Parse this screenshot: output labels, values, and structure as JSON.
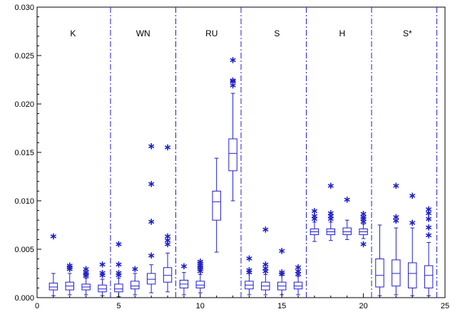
{
  "chart_data": {
    "type": "boxplot",
    "title": "",
    "xlabel": "",
    "ylabel": "",
    "xlim": [
      0,
      25
    ],
    "ylim": [
      0,
      0.03
    ],
    "grid": false,
    "x_ticks": [
      0,
      5,
      10,
      15,
      20,
      25
    ],
    "x_tick_labels": [
      "0",
      "5",
      "10",
      "15",
      "20",
      "25"
    ],
    "y_ticks": [
      0,
      0.005,
      0.01,
      0.015,
      0.02,
      0.025,
      0.03
    ],
    "y_tick_labels": [
      "0.000",
      "0.005",
      "0.010",
      "0.015",
      "0.020",
      "0.025",
      "0.030"
    ],
    "box_color": "#1f1fcc",
    "group_dividers": [
      4.5,
      8.5,
      12.5,
      16.5,
      20.5,
      24.5
    ],
    "group_labels": [
      {
        "text": "K",
        "x": 2.2
      },
      {
        "text": "WN",
        "x": 6.5
      },
      {
        "text": "RU",
        "x": 10.7
      },
      {
        "text": "S",
        "x": 14.7
      },
      {
        "text": "H",
        "x": 18.7
      },
      {
        "text": "S*",
        "x": 22.7
      }
    ],
    "boxes": [
      {
        "x": 1,
        "whislo": 0.0002,
        "q1": 0.0008,
        "med": 0.0011,
        "q3": 0.0015,
        "whishi": 0.0025,
        "fliers": [
          0.0064
        ]
      },
      {
        "x": 2,
        "whislo": 0.0003,
        "q1": 0.0008,
        "med": 0.0012,
        "q3": 0.0016,
        "whishi": 0.0025,
        "fliers": [
          0.003,
          0.0032,
          0.0034
        ]
      },
      {
        "x": 3,
        "whislo": 0.0003,
        "q1": 0.0008,
        "med": 0.0011,
        "q3": 0.0014,
        "whishi": 0.002,
        "fliers": [
          0.0023,
          0.0025,
          0.0027,
          0.003
        ]
      },
      {
        "x": 4,
        "whislo": 0.0002,
        "q1": 0.0006,
        "med": 0.0009,
        "q3": 0.0013,
        "whishi": 0.0019,
        "fliers": [
          0.0024,
          0.0026,
          0.0035
        ]
      },
      {
        "x": 5,
        "whislo": 0.0001,
        "q1": 0.0006,
        "med": 0.0009,
        "q3": 0.0014,
        "whishi": 0.002,
        "fliers": [
          0.0024,
          0.0026,
          0.0035,
          0.0056
        ]
      },
      {
        "x": 6,
        "whislo": 0.0003,
        "q1": 0.0009,
        "med": 0.0012,
        "q3": 0.0017,
        "whishi": 0.0025,
        "fliers": [
          0.003
        ]
      },
      {
        "x": 7,
        "whislo": 0.0005,
        "q1": 0.0014,
        "med": 0.0019,
        "q3": 0.0025,
        "whishi": 0.0034,
        "fliers": [
          0.0044,
          0.0079,
          0.0118,
          0.0157
        ]
      },
      {
        "x": 8,
        "whislo": 0.0006,
        "q1": 0.0016,
        "med": 0.0023,
        "q3": 0.0031,
        "whishi": 0.0046,
        "fliers": [
          0.0056,
          0.006,
          0.0064,
          0.0156
        ]
      },
      {
        "x": 9,
        "whislo": 0.0003,
        "q1": 0.001,
        "med": 0.0014,
        "q3": 0.0018,
        "whishi": 0.0026,
        "fliers": [
          0.0033
        ]
      },
      {
        "x": 10,
        "whislo": 0.0005,
        "q1": 0.001,
        "med": 0.0013,
        "q3": 0.0017,
        "whishi": 0.0024,
        "fliers": [
          0.0028,
          0.003,
          0.0032,
          0.0034,
          0.0036,
          0.0038
        ]
      },
      {
        "x": 11,
        "whislo": 0.0047,
        "q1": 0.008,
        "med": 0.0099,
        "q3": 0.011,
        "whishi": 0.0144,
        "fliers": []
      },
      {
        "x": 12,
        "whislo": 0.01,
        "q1": 0.0131,
        "med": 0.0149,
        "q3": 0.0164,
        "whishi": 0.0211,
        "fliers": [
          0.022,
          0.0224,
          0.0225,
          0.0246
        ]
      },
      {
        "x": 13,
        "whislo": 0.0003,
        "q1": 0.0009,
        "med": 0.0013,
        "q3": 0.0017,
        "whishi": 0.0025,
        "fliers": [
          0.0027,
          0.0029,
          0.0041
        ]
      },
      {
        "x": 14,
        "whislo": 0.0003,
        "q1": 0.0008,
        "med": 0.0012,
        "q3": 0.0016,
        "whishi": 0.0024,
        "fliers": [
          0.0028,
          0.0031,
          0.0035,
          0.0071
        ]
      },
      {
        "x": 15,
        "whislo": 0.0003,
        "q1": 0.0008,
        "med": 0.0012,
        "q3": 0.0016,
        "whishi": 0.0023,
        "fliers": [
          0.0025,
          0.0027,
          0.0049
        ]
      },
      {
        "x": 16,
        "whislo": 0.0003,
        "q1": 0.0009,
        "med": 0.0012,
        "q3": 0.0016,
        "whishi": 0.0022,
        "fliers": [
          0.0025,
          0.0028,
          0.0032
        ]
      },
      {
        "x": 17,
        "whislo": 0.0058,
        "q1": 0.0065,
        "med": 0.0068,
        "q3": 0.0071,
        "whishi": 0.0078,
        "fliers": [
          0.0082,
          0.0085,
          0.009
        ]
      },
      {
        "x": 18,
        "whislo": 0.0059,
        "q1": 0.0065,
        "med": 0.0068,
        "q3": 0.0071,
        "whishi": 0.0078,
        "fliers": [
          0.0082,
          0.0085,
          0.0088,
          0.0116
        ]
      },
      {
        "x": 19,
        "whislo": 0.006,
        "q1": 0.0065,
        "med": 0.0068,
        "q3": 0.0072,
        "whishi": 0.008,
        "fliers": [
          0.0102
        ]
      },
      {
        "x": 20,
        "whislo": 0.0061,
        "q1": 0.0065,
        "med": 0.0068,
        "q3": 0.0071,
        "whishi": 0.0076,
        "fliers": [
          0.0056,
          0.0079,
          0.0082,
          0.0084,
          0.0087
        ]
      },
      {
        "x": 21,
        "whislo": 0.0002,
        "q1": 0.0011,
        "med": 0.0023,
        "q3": 0.004,
        "whishi": 0.0075,
        "fliers": []
      },
      {
        "x": 22,
        "whislo": 0.0003,
        "q1": 0.0012,
        "med": 0.0025,
        "q3": 0.0039,
        "whishi": 0.0072,
        "fliers": [
          0.008,
          0.0084,
          0.0116
        ]
      },
      {
        "x": 23,
        "whislo": 0.0002,
        "q1": 0.001,
        "med": 0.0025,
        "q3": 0.0036,
        "whishi": 0.0072,
        "fliers": [
          0.0078,
          0.0106
        ]
      },
      {
        "x": 24,
        "whislo": 0.0002,
        "q1": 0.001,
        "med": 0.0023,
        "q3": 0.0033,
        "whishi": 0.0057,
        "fliers": [
          0.0065,
          0.0073,
          0.0082,
          0.0088,
          0.0092
        ]
      }
    ]
  }
}
